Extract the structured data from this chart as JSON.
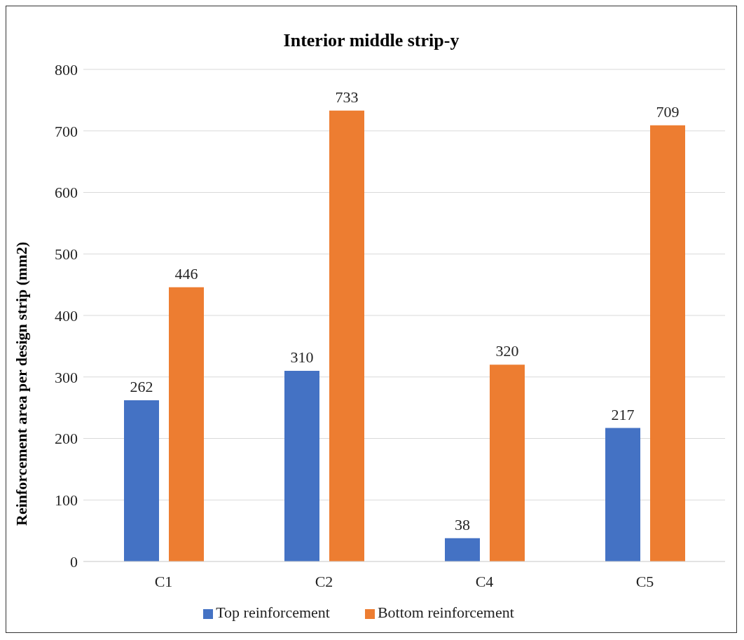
{
  "chart_data": {
    "type": "bar",
    "title": "Interior middle strip-y",
    "ylabel": "Reinforcement area per design strip (mm2)",
    "categories": [
      "C1",
      "C2",
      "C4",
      "C5"
    ],
    "series": [
      {
        "name": "Top reinforcement",
        "color": "#4472c4",
        "values": [
          262,
          310,
          38,
          217
        ]
      },
      {
        "name": "Bottom reinforcement",
        "color": "#ed7d31",
        "values": [
          446,
          733,
          320,
          709
        ]
      }
    ],
    "ylim": [
      0,
      800
    ],
    "yticks": [
      0,
      100,
      200,
      300,
      400,
      500,
      600,
      700,
      800
    ],
    "grid": "y",
    "legend": "bottom",
    "data_labels": true
  }
}
